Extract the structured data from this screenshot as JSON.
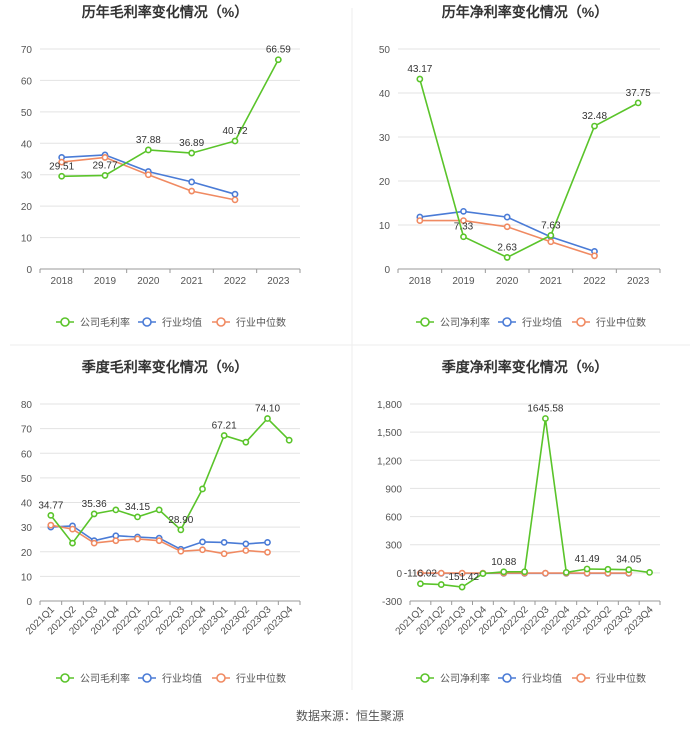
{
  "colors": {
    "company": "#5ac42a",
    "industry_avg": "#4a7bd6",
    "industry_median": "#f08a62",
    "grid": "#e3e3e3",
    "axis": "#999999",
    "text": "#555555",
    "title": "#333333"
  },
  "legend": {
    "company_gross": "公司毛利率",
    "company_net": "公司净利率",
    "industry_avg": "行业均值",
    "industry_median": "行业中位数"
  },
  "source": "数据来源：恒生聚源",
  "chart_data": [
    {
      "type": "line",
      "title": "历年毛利率变化情况（%）",
      "categories": [
        "2018",
        "2019",
        "2020",
        "2021",
        "2022",
        "2023"
      ],
      "ylim": [
        0,
        70
      ],
      "yticks": [
        0,
        10,
        20,
        30,
        40,
        50,
        60,
        70
      ],
      "ytick_labels": [
        "0",
        "10",
        "20",
        "30",
        "40",
        "50",
        "60",
        "70"
      ],
      "grid": true,
      "legend_position": "bottom",
      "series": [
        {
          "name": "公司毛利率",
          "color_key": "company",
          "values": [
            29.51,
            29.77,
            37.88,
            36.89,
            40.72,
            66.59
          ],
          "labels": [
            "29.51",
            "29.77",
            "37.88",
            "36.89",
            "40.72",
            "66.59"
          ]
        },
        {
          "name": "行业均值",
          "color_key": "industry_avg",
          "values": [
            35.5,
            36.3,
            31.0,
            27.7,
            23.8,
            null
          ]
        },
        {
          "name": "行业中位数",
          "color_key": "industry_median",
          "values": [
            34.0,
            35.5,
            30.0,
            24.8,
            22.0,
            null
          ]
        }
      ]
    },
    {
      "type": "line",
      "title": "历年净利率变化情况（%）",
      "categories": [
        "2018",
        "2019",
        "2020",
        "2021",
        "2022",
        "2023"
      ],
      "ylim": [
        0,
        50
      ],
      "yticks": [
        0,
        10,
        20,
        30,
        40,
        50
      ],
      "ytick_labels": [
        "0",
        "10",
        "20",
        "30",
        "40",
        "50"
      ],
      "grid": true,
      "legend_position": "bottom",
      "series": [
        {
          "name": "公司净利率",
          "color_key": "company",
          "values": [
            43.17,
            7.33,
            2.63,
            7.63,
            32.48,
            37.75
          ],
          "labels": [
            "43.17",
            "7.33",
            "2.63",
            "7.63",
            "32.48",
            "37.75"
          ]
        },
        {
          "name": "行业均值",
          "color_key": "industry_avg",
          "values": [
            11.8,
            13.1,
            11.8,
            7.3,
            4.0,
            null
          ]
        },
        {
          "name": "行业中位数",
          "color_key": "industry_median",
          "values": [
            11.0,
            11.0,
            9.6,
            6.2,
            3.0,
            null
          ]
        }
      ]
    },
    {
      "type": "line",
      "title": "季度毛利率变化情况（%）",
      "categories": [
        "2021Q1",
        "2021Q2",
        "2021Q3",
        "2021Q4",
        "2022Q1",
        "2022Q2",
        "2022Q3",
        "2022Q4",
        "2023Q1",
        "2023Q2",
        "2023Q3",
        "2023Q4"
      ],
      "ylim": [
        0,
        80
      ],
      "yticks": [
        0,
        10,
        20,
        30,
        40,
        50,
        60,
        70,
        80
      ],
      "ytick_labels": [
        "0",
        "10",
        "20",
        "30",
        "40",
        "50",
        "60",
        "70",
        "80"
      ],
      "grid": true,
      "legend_position": "bottom",
      "series": [
        {
          "name": "公司毛利率",
          "color_key": "company",
          "values": [
            34.77,
            23.5,
            35.36,
            37.0,
            34.15,
            37.0,
            28.9,
            45.5,
            67.21,
            64.5,
            74.1,
            65.3
          ],
          "labels": [
            "34.77",
            "",
            "35.36",
            "",
            "34.15",
            "",
            "28.90",
            "",
            "67.21",
            "",
            "74.10",
            ""
          ]
        },
        {
          "name": "行业均值",
          "color_key": "industry_avg",
          "values": [
            30.0,
            30.5,
            24.5,
            26.5,
            26.0,
            25.5,
            21.0,
            24.0,
            23.8,
            23.2,
            23.8,
            null
          ]
        },
        {
          "name": "行业中位数",
          "color_key": "industry_median",
          "values": [
            30.8,
            29.2,
            23.5,
            24.5,
            25.2,
            24.5,
            20.2,
            20.8,
            19.2,
            20.5,
            19.8,
            null
          ]
        }
      ]
    },
    {
      "type": "line",
      "title": "季度净利率变化情况（%）",
      "categories": [
        "2021Q1",
        "2021Q2",
        "2021Q3",
        "2021Q4",
        "2022Q1",
        "2022Q2",
        "2022Q3",
        "2022Q4",
        "2023Q1",
        "2023Q2",
        "2023Q3",
        "2023Q4"
      ],
      "ylim": [
        -300,
        1800
      ],
      "yticks": [
        -300,
        0,
        300,
        600,
        900,
        1200,
        1500,
        1800
      ],
      "ytick_labels": [
        "-300",
        "0",
        "300",
        "600",
        "900",
        "1,200",
        "1,500",
        "1,800"
      ],
      "grid": true,
      "legend_position": "bottom",
      "series": [
        {
          "name": "公司净利率",
          "color_key": "company",
          "values": [
            -116.02,
            -125,
            -151.42,
            -8,
            10.88,
            12,
            1645.58,
            5,
            41.49,
            38,
            34.05,
            5
          ],
          "labels": [
            "-116.02",
            "",
            "-151.42",
            "",
            "10.88",
            "",
            "1645.58",
            "",
            "41.49",
            "",
            "34.05",
            ""
          ]
        },
        {
          "name": "行业均值",
          "color_key": "industry_avg",
          "values": [
            -5,
            -5,
            -5,
            -5,
            -5,
            -5,
            -5,
            -5,
            -5,
            -5,
            -5,
            null
          ]
        },
        {
          "name": "行业中位数",
          "color_key": "industry_median",
          "values": [
            -3,
            -3,
            -3,
            -3,
            -3,
            -3,
            -3,
            -3,
            -3,
            -3,
            -3,
            null
          ]
        }
      ]
    }
  ]
}
